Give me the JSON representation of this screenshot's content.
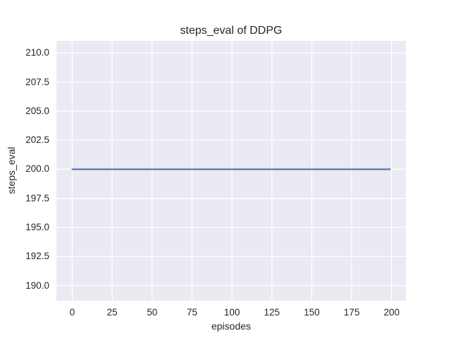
{
  "chart_data": {
    "type": "line",
    "title": "steps_eval of DDPG",
    "xlabel": "episodes",
    "ylabel": "steps_eval",
    "series": [
      {
        "name": "DDPG",
        "x": [
          0,
          199
        ],
        "y": [
          200.0,
          200.0
        ],
        "color": "#4c72b0",
        "linewidth": 2.2
      }
    ],
    "xlim": [
      -9.95,
      208.95
    ],
    "ylim": [
      188.7,
      211.05
    ],
    "xtick_labels": [
      "0",
      "25",
      "50",
      "75",
      "100",
      "125",
      "150",
      "175",
      "200"
    ],
    "ytick_labels": [
      "190.0",
      "192.5",
      "195.0",
      "197.5",
      "200.0",
      "202.5",
      "205.0",
      "207.5",
      "210.0"
    ],
    "grid": true,
    "legend_position": "none",
    "styles": {
      "figure_background": "#ffffff",
      "plot_background": "#eaeaf2",
      "grid_color": "#ffffff",
      "text_color": "#262626"
    }
  }
}
